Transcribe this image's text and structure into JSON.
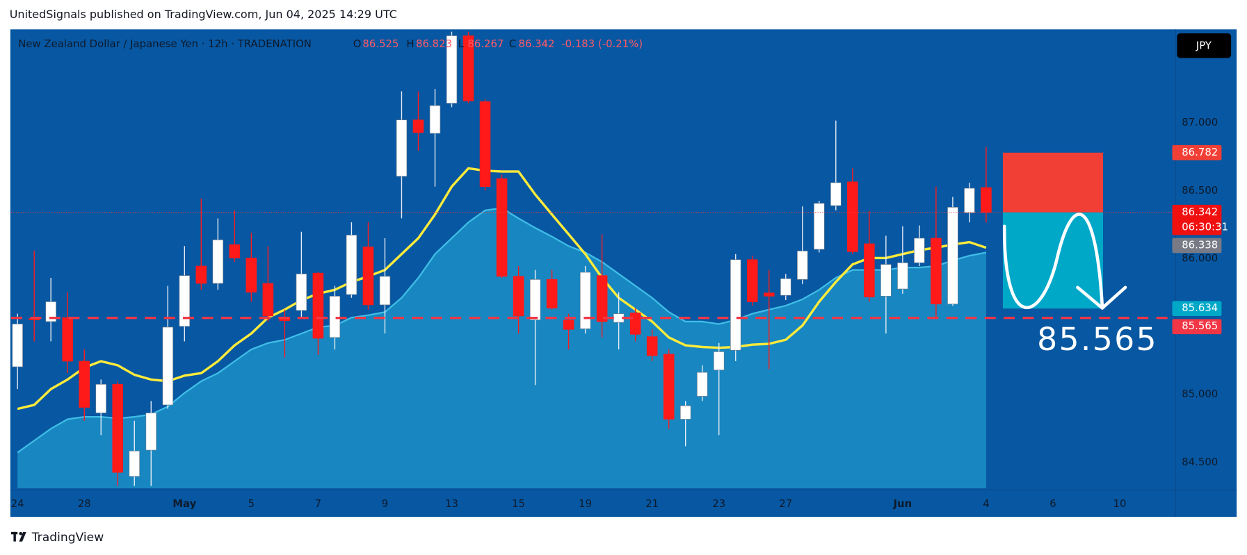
{
  "header": {
    "published": "UnitedSignals published on TradingView.com, Jun 04, 2025 14:29 UTC",
    "brand": "TradingView",
    "currency_button": "JPY"
  },
  "chart_data": {
    "type": "candlestick",
    "title": "New Zealand Dollar / Japanese Yen · 12h · TRADENATION",
    "ohlc_letters": [
      "O",
      "H",
      "L",
      "C"
    ],
    "change_label": "-0.183 (-0.21%)",
    "up_color": "#ffffff",
    "down_color": "#ff1a1a",
    "open": [
      85.205,
      85.56,
      85.538,
      85.567,
      85.246,
      84.865,
      85.076,
      84.398,
      84.591,
      84.924,
      85.503,
      85.947,
      85.819,
      86.105,
      86.006,
      85.819,
      85.567,
      85.62,
      85.895,
      85.421,
      85.737,
      86.088,
      85.661,
      86.608,
      87.023,
      86.924,
      87.146,
      87.643,
      87.158,
      86.591,
      85.871,
      85.55,
      85.848,
      85.55,
      85.485,
      85.877,
      85.532,
      85.602,
      85.427,
      85.298,
      84.819,
      84.988,
      85.181,
      85.327,
      85.994,
      85.749,
      85.731,
      85.848,
      86.07,
      86.392,
      86.567,
      86.111,
      85.725,
      85.778,
      85.971,
      86.152,
      85.667,
      86.339,
      86.525
    ],
    "high": [
      85.596,
      86.06,
      85.86,
      85.754,
      85.333,
      85.111,
      85.099,
      84.807,
      84.953,
      85.801,
      86.094,
      86.444,
      86.298,
      86.357,
      86.193,
      86.094,
      85.626,
      86.199,
      85.901,
      85.801,
      86.269,
      86.269,
      86.152,
      87.234,
      87.234,
      87.251,
      87.673,
      87.673,
      87.175,
      86.62,
      85.947,
      85.918,
      85.918,
      85.596,
      85.947,
      86.181,
      85.754,
      85.637,
      85.48,
      85.333,
      84.953,
      85.216,
      85.38,
      86.035,
      86.023,
      85.918,
      85.889,
      86.386,
      86.427,
      87.018,
      86.667,
      86.351,
      86.17,
      86.24,
      86.246,
      86.532,
      86.456,
      86.561,
      86.823
    ],
    "low": [
      85.041,
      85.392,
      85.392,
      85.158,
      84.807,
      84.702,
      84.327,
      84.327,
      84.327,
      84.895,
      85.392,
      85.772,
      85.772,
      85.977,
      85.684,
      85.538,
      85.275,
      85.567,
      85.292,
      85.333,
      85.713,
      85.626,
      85.45,
      86.298,
      86.795,
      86.532,
      87.117,
      87.146,
      86.503,
      85.86,
      85.45,
      85.07,
      85.626,
      85.333,
      85.45,
      85.421,
      85.333,
      85.392,
      85.246,
      84.749,
      84.62,
      84.953,
      84.702,
      85.246,
      85.655,
      85.187,
      85.696,
      85.813,
      86.047,
      86.357,
      86.035,
      85.684,
      85.45,
      85.743,
      85.947,
      85.556,
      85.655,
      86.269,
      86.267
    ],
    "close": [
      85.52,
      85.55,
      85.684,
      85.246,
      84.906,
      85.076,
      84.427,
      84.585,
      84.865,
      85.497,
      85.877,
      85.819,
      86.14,
      86.006,
      85.754,
      85.579,
      85.544,
      85.889,
      85.415,
      85.725,
      86.175,
      85.661,
      85.871,
      87.023,
      86.93,
      87.129,
      87.643,
      87.164,
      86.532,
      85.871,
      85.579,
      85.848,
      85.637,
      85.48,
      85.901,
      85.538,
      85.596,
      85.444,
      85.287,
      84.819,
      84.918,
      85.164,
      85.316,
      85.994,
      85.684,
      85.725,
      85.854,
      86.058,
      86.409,
      86.561,
      86.053,
      85.719,
      85.959,
      85.971,
      86.152,
      85.667,
      86.38,
      86.52,
      86.342
    ],
    "lines": [
      {
        "color": "#ffeb3b",
        "values": [
          84.895,
          84.924,
          85.041,
          85.111,
          85.199,
          85.246,
          85.216,
          85.146,
          85.111,
          85.099,
          85.14,
          85.158,
          85.246,
          85.363,
          85.45,
          85.567,
          85.626,
          85.696,
          85.743,
          85.772,
          85.83,
          85.871,
          85.918,
          86.035,
          86.152,
          86.327,
          86.532,
          86.667,
          86.649,
          86.643,
          86.643,
          86.474,
          86.327,
          86.181,
          86.035,
          85.86,
          85.713,
          85.626,
          85.538,
          85.421,
          85.363,
          85.351,
          85.345,
          85.351,
          85.368,
          85.374,
          85.404,
          85.509,
          85.684,
          85.83,
          85.959,
          86.006,
          86.006,
          86.035,
          86.064,
          86.082,
          86.105,
          86.123,
          86.082
        ]
      }
    ],
    "areas": [
      {
        "color": "#1d93c9",
        "values": [
          84.573,
          84.661,
          84.749,
          84.819,
          84.836,
          84.836,
          84.825,
          84.836,
          84.854,
          84.912,
          85.012,
          85.099,
          85.158,
          85.246,
          85.333,
          85.38,
          85.404,
          85.45,
          85.497,
          85.509,
          85.567,
          85.585,
          85.608,
          85.713,
          85.86,
          86.035,
          86.152,
          86.269,
          86.357,
          86.374,
          86.298,
          86.228,
          86.164,
          86.094,
          86.047,
          85.977,
          85.889,
          85.801,
          85.713,
          85.608,
          85.538,
          85.538,
          85.52,
          85.55,
          85.596,
          85.626,
          85.655,
          85.702,
          85.772,
          85.86,
          85.918,
          85.918,
          85.918,
          85.936,
          85.936,
          85.947,
          85.988,
          86.023,
          86.047
        ]
      }
    ],
    "xlim": [
      -0.381,
      69.333
    ],
    "xticks": [
      {
        "value": 0,
        "label": "24"
      },
      {
        "value": 4,
        "label": "28"
      },
      {
        "value": 10,
        "label": "May"
      },
      {
        "value": 14,
        "label": "5"
      },
      {
        "value": 18,
        "label": "7"
      },
      {
        "value": 22,
        "label": "9"
      },
      {
        "value": 26,
        "label": "13"
      },
      {
        "value": 30,
        "label": "15"
      },
      {
        "value": 34,
        "label": "19"
      },
      {
        "value": 38,
        "label": "21"
      },
      {
        "value": 42,
        "label": "23"
      },
      {
        "value": 46,
        "label": "27"
      },
      {
        "value": 53,
        "label": "Jun"
      },
      {
        "value": 58,
        "label": "4"
      },
      {
        "value": 62,
        "label": "6"
      },
      {
        "value": 66,
        "label": "10"
      }
    ],
    "ylim": [
      84.31,
      87.69
    ],
    "yticks": [
      {
        "value": 87,
        "label": "87.000"
      },
      {
        "value": 86.5,
        "label": "86.500"
      },
      {
        "value": 86,
        "label": "86.000"
      },
      {
        "value": 85,
        "label": "85.000"
      },
      {
        "value": 84.5,
        "label": "84.500"
      }
    ],
    "grid": false,
    "countdown": "06:30:31",
    "second_price": 86.338,
    "position": {
      "x_range": [
        59,
        65
      ],
      "stop": 86.782,
      "entry": 86.342,
      "target": 85.634,
      "stop_color": "#f23f35",
      "target_color": "#00a8c8"
    },
    "target_line": 85.565,
    "target_line_color": "#f23645"
  }
}
